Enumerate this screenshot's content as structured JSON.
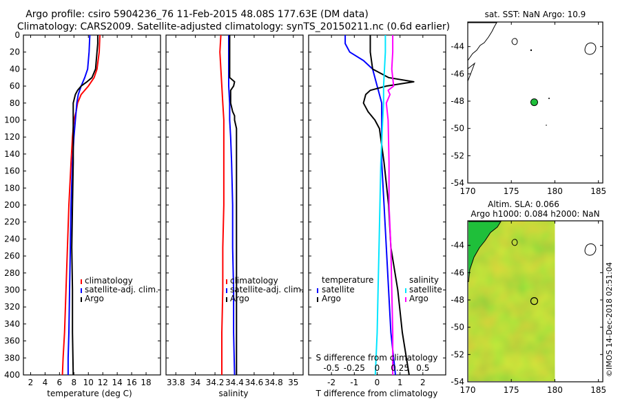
{
  "title": {
    "line1": "Argo profile: csiro 5904236_76 11-Feb-2015 48.08S 177.63E (DM data)",
    "line2": "Climatology: CARS2009. Satellite-adjusted climatology: synTS_20150211.nc (0.6d earlier)"
  },
  "depth_ticks": [
    "0",
    "20",
    "40",
    "60",
    "80",
    "100",
    "120",
    "140",
    "160",
    "180",
    "200",
    "220",
    "240",
    "260",
    "280",
    "300",
    "320",
    "340",
    "360",
    "380",
    "400"
  ],
  "colors": {
    "climatology": "#ff0000",
    "satellite": "#0000ff",
    "argo": "#000000",
    "salinity_sat": "#00e5ff",
    "salinity_diff": "#ff00ff",
    "map_land": "#1fbf3a"
  },
  "chart_data": [
    {
      "id": "temp",
      "type": "line",
      "xlabel": "temperature (deg C)",
      "ylabel": "",
      "xlim": [
        1,
        20
      ],
      "ylim": [
        400,
        0
      ],
      "xticks": [
        2,
        4,
        6,
        8,
        10,
        12,
        14,
        16,
        18
      ],
      "xtick_labels": [
        "2",
        "4",
        "6",
        "8",
        "10",
        "12",
        "14",
        "16",
        "18"
      ],
      "legend": [
        "climatology",
        "satellite-adj. clim.",
        "Argo"
      ],
      "series": [
        {
          "name": "climatology",
          "color": "#ff0000",
          "depth": [
            0,
            20,
            40,
            50,
            60,
            70,
            80,
            90,
            100,
            120,
            150,
            200,
            250,
            300,
            350,
            380,
            400
          ],
          "values": [
            11.6,
            11.5,
            11.2,
            10.8,
            10.0,
            9.0,
            8.5,
            8.3,
            8.0,
            7.8,
            7.6,
            7.3,
            7.1,
            6.9,
            6.7,
            6.5,
            6.4
          ]
        },
        {
          "name": "satellite-adj. clim.",
          "color": "#0000ff",
          "depth": [
            0,
            20,
            40,
            50,
            60,
            70,
            80,
            90,
            100,
            120,
            150,
            200,
            250,
            300,
            350,
            380,
            400
          ],
          "values": [
            10.2,
            10.1,
            9.9,
            9.5,
            9.0,
            8.6,
            8.4,
            8.3,
            8.2,
            8.0,
            7.8,
            7.6,
            7.5,
            7.4,
            7.3,
            7.2,
            7.2
          ]
        },
        {
          "name": "Argo",
          "color": "#000000",
          "depth": [
            0,
            10,
            20,
            40,
            50,
            55,
            60,
            65,
            70,
            80,
            90,
            100,
            120,
            150,
            200,
            250,
            300,
            350,
            400
          ],
          "values": [
            11.3,
            11.3,
            11.2,
            11.0,
            10.5,
            9.8,
            9.0,
            8.5,
            8.2,
            7.9,
            7.9,
            7.9,
            7.9,
            7.9,
            7.8,
            7.7,
            7.8,
            7.8,
            7.9
          ]
        }
      ]
    },
    {
      "id": "sal",
      "type": "line",
      "xlabel": "salinity",
      "xlim": [
        33.7,
        35.1
      ],
      "ylim": [
        400,
        0
      ],
      "xticks": [
        33.8,
        34,
        34.2,
        34.4,
        34.6,
        34.8,
        35
      ],
      "xtick_labels": [
        "33.8",
        "34",
        "34.2",
        "34.4",
        "34.6",
        "34.8",
        "35"
      ],
      "legend": [
        "climatology",
        "satellite-adj. clim.",
        "Argo"
      ],
      "series": [
        {
          "name": "climatology",
          "color": "#ff0000",
          "depth": [
            0,
            20,
            40,
            60,
            80,
            100,
            120,
            150,
            200,
            250,
            300,
            350,
            400
          ],
          "values": [
            34.26,
            34.25,
            34.26,
            34.27,
            34.28,
            34.29,
            34.29,
            34.29,
            34.29,
            34.28,
            34.28,
            34.27,
            34.27
          ]
        },
        {
          "name": "satellite-adj. clim.",
          "color": "#0000ff",
          "depth": [
            0,
            20,
            40,
            60,
            80,
            100,
            120,
            150,
            200,
            250,
            300,
            350,
            400
          ],
          "values": [
            34.34,
            34.34,
            34.34,
            34.34,
            34.35,
            34.35,
            34.36,
            34.37,
            34.38,
            34.38,
            34.39,
            34.39,
            34.4
          ]
        },
        {
          "name": "Argo",
          "color": "#000000",
          "depth": [
            0,
            20,
            40,
            50,
            55,
            60,
            65,
            75,
            80,
            90,
            95,
            100,
            110,
            120,
            150,
            200,
            250,
            300,
            350,
            400
          ],
          "values": [
            34.35,
            34.35,
            34.35,
            34.35,
            34.4,
            34.39,
            34.36,
            34.36,
            34.36,
            34.38,
            34.4,
            34.4,
            34.42,
            34.42,
            34.42,
            34.42,
            34.42,
            34.42,
            34.42,
            34.42
          ]
        }
      ]
    },
    {
      "id": "diff",
      "type": "line",
      "xlabel": "T difference from climatology",
      "xlim": [
        -3,
        3
      ],
      "ylim": [
        400,
        0
      ],
      "xticks": [
        -2,
        -1,
        0,
        1,
        2
      ],
      "xtick_labels": [
        "-2",
        "-1",
        "0",
        "1",
        "2"
      ],
      "top_axis_label": "S difference from climatology",
      "top_axis_ticks": [
        -0.5,
        -0.25,
        0,
        0.25,
        0.5
      ],
      "top_axis_tick_labels": [
        "-0.5",
        "-0.25",
        "0",
        "0.25",
        "0.5"
      ],
      "legend_temperature": {
        "title": "temperature",
        "items": [
          "satellite",
          "Argo"
        ]
      },
      "legend_salinity": {
        "title": "salinity",
        "items": [
          "satellite",
          "Argo"
        ]
      },
      "series": [
        {
          "name": "temperature satellite",
          "color": "#0000ff",
          "depth": [
            0,
            10,
            20,
            30,
            40,
            50,
            60,
            70,
            80,
            100,
            150,
            200,
            250,
            300,
            350,
            400
          ],
          "values": [
            -1.4,
            -1.4,
            -1.2,
            -0.6,
            -0.2,
            -0.1,
            0.0,
            0.1,
            0.2,
            0.2,
            0.2,
            0.3,
            0.4,
            0.5,
            0.6,
            0.8
          ]
        },
        {
          "name": "temperature Argo",
          "color": "#000000",
          "depth": [
            0,
            20,
            40,
            50,
            55,
            60,
            65,
            70,
            80,
            90,
            100,
            110,
            150,
            200,
            250,
            300,
            350,
            400
          ],
          "values": [
            -0.3,
            -0.3,
            -0.2,
            0.5,
            1.6,
            0.4,
            -0.3,
            -0.5,
            -0.6,
            -0.4,
            -0.1,
            0.1,
            0.3,
            0.5,
            0.6,
            0.9,
            1.1,
            1.4
          ]
        },
        {
          "name": "salinity satellite",
          "color": "#00e5ff",
          "depth": [
            0,
            20,
            40,
            60,
            80,
            100,
            150,
            200,
            250,
            300,
            350,
            400
          ],
          "values": [
            0.09,
            0.09,
            0.08,
            0.07,
            0.07,
            0.06,
            0.04,
            0.03,
            0.02,
            0.01,
            0.0,
            -0.02
          ]
        },
        {
          "name": "salinity Argo",
          "color": "#ff00ff",
          "depth": [
            0,
            20,
            40,
            60,
            65,
            70,
            80,
            90,
            100,
            150,
            200,
            250,
            300,
            350,
            400
          ],
          "values": [
            0.17,
            0.17,
            0.16,
            0.18,
            0.12,
            0.14,
            0.1,
            0.11,
            0.12,
            0.13,
            0.13,
            0.15,
            0.16,
            0.17,
            0.17
          ]
        }
      ]
    }
  ],
  "map_sst": {
    "title": "sat. SST: NaN Argo: 10.9",
    "lon_ticks": [
      "170",
      "175",
      "180",
      "185"
    ],
    "lat_ticks": [
      "-44",
      "-46",
      "-48",
      "-50",
      "-52",
      "-54"
    ],
    "lon_range": [
      170,
      185.5
    ],
    "lat_range": [
      -54,
      -42.2
    ],
    "argo_lon": 177.63,
    "argo_lat": -48.08
  },
  "map_sla": {
    "title_line1": "Altim. SLA: 0.066",
    "title_line2": "Argo h1000: 0.084 h2000: NaN",
    "lon_ticks": [
      "170",
      "175",
      "180",
      "185"
    ],
    "lat_ticks": [
      "-44",
      "-46",
      "-48",
      "-50",
      "-52",
      "-54"
    ],
    "lon_range": [
      170,
      185.5
    ],
    "lat_range": [
      -54,
      -42.2
    ],
    "argo_lon": 177.63,
    "argo_lat": -48.08,
    "data_east_edge_lon": 180
  },
  "credit": "©IMOS 14-Dec-2018 02:51:04"
}
